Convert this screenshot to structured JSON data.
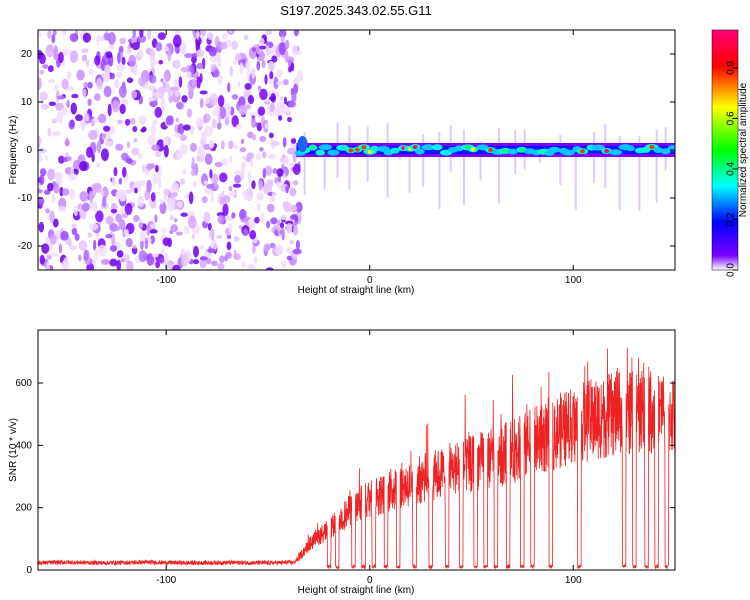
{
  "title": "S197.2025.343.02.55.G11",
  "chart_data": [
    {
      "type": "heatmap",
      "xlabel": "Height of straight line (km)",
      "ylabel": "Frequency (Hz)",
      "xlim": [
        -163,
        150
      ],
      "ylim": [
        -25,
        25
      ],
      "xticks": [
        -100,
        0,
        100
      ],
      "xtick_labels": [
        "-100",
        "0",
        "100"
      ],
      "yticks": [
        -20,
        -10,
        0,
        10,
        20
      ],
      "ytick_labels": [
        "-20",
        "-10",
        "0",
        "10",
        "20"
      ],
      "noise_region_x": [
        -163,
        -36
      ],
      "signal_band_hz": 0,
      "colorbar": {
        "label": "Normalized spectral amplitude",
        "range": [
          0,
          0.95
        ],
        "ticks": [
          0,
          0.2,
          0.4,
          0.6,
          0.8
        ],
        "tick_labels": [
          "0.0",
          "0.2",
          "0.4",
          "0.6",
          "0.8"
        ],
        "colormap": [
          "#ffffff",
          "#7a00ff",
          "#0000ff",
          "#00ffff",
          "#00ff00",
          "#ffff00",
          "#ff0000",
          "#ff007f"
        ]
      }
    },
    {
      "type": "line",
      "xlabel": "Height of straight line (km)",
      "ylabel": "SNR (10 * v/v)",
      "xlim": [
        -163,
        150
      ],
      "ylim": [
        0,
        770
      ],
      "xticks": [
        -100,
        0,
        100
      ],
      "xtick_labels": [
        "-100",
        "0",
        "100"
      ],
      "yticks": [
        0,
        200,
        400,
        600
      ],
      "ytick_labels": [
        "0",
        "200",
        "400",
        "600"
      ],
      "series": [
        {
          "color": "#ee2222",
          "x": [
            -163,
            -150,
            -130,
            -110,
            -90,
            -70,
            -50,
            -37,
            -30,
            -25,
            -20,
            -15,
            -10,
            -5,
            0,
            5,
            10,
            15,
            20,
            25,
            30,
            35,
            40,
            45,
            50,
            55,
            60,
            65,
            70,
            75,
            80,
            85,
            90,
            95,
            100,
            105,
            110,
            115,
            120,
            125,
            130,
            135,
            140,
            145,
            150
          ],
          "y": [
            20,
            22,
            20,
            22,
            20,
            21,
            20,
            22,
            80,
            110,
            130,
            160,
            190,
            210,
            230,
            240,
            255,
            270,
            275,
            290,
            300,
            310,
            320,
            330,
            340,
            350,
            360,
            370,
            380,
            395,
            410,
            425,
            440,
            450,
            460,
            475,
            485,
            490,
            500,
            505,
            510,
            515,
            510,
            505,
            500
          ]
        }
      ],
      "dropouts_x": [
        -20,
        -16,
        -8,
        -3,
        2,
        8,
        14,
        22,
        30,
        38,
        45,
        52,
        57,
        62,
        68,
        75,
        80,
        89,
        103,
        125,
        130,
        136,
        141,
        146
      ]
    }
  ]
}
